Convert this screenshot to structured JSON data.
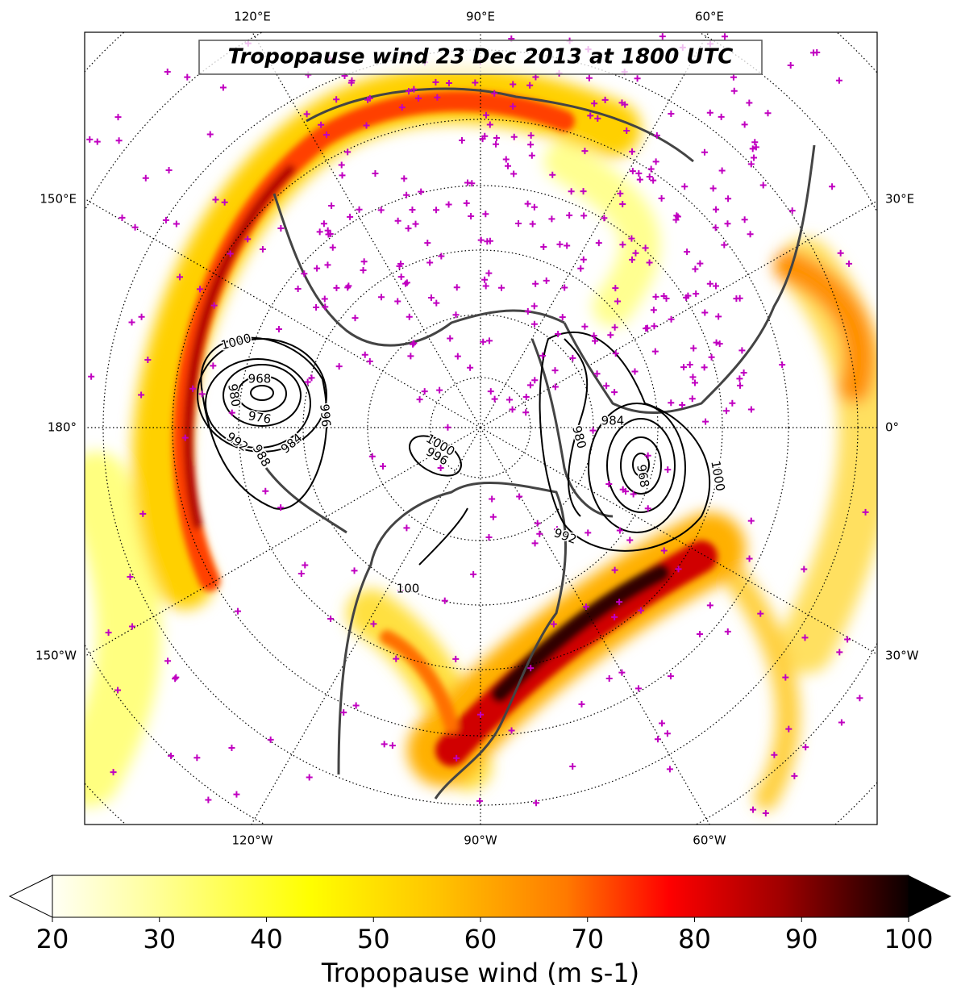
{
  "map": {
    "title": "Tropopause wind 23 Dec 2013 at 1800 UTC",
    "lon_labels": {
      "top": [
        "120°E",
        "90°E",
        "60°E"
      ],
      "bottom": [
        "120°W",
        "90°W",
        "60°W"
      ],
      "left": [
        "150°E",
        "180°",
        "150°W"
      ],
      "right": [
        "30°E",
        "0°",
        "30°W"
      ]
    },
    "contour_labels": [
      "1000",
      "968",
      "976",
      "980",
      "992",
      "988",
      "984",
      "996",
      "1000",
      "996",
      "984",
      "980",
      "968",
      "1000",
      "992",
      "100"
    ]
  },
  "colorbar": {
    "label": "Tropopause wind (m s-1)",
    "lim": [
      20,
      100
    ],
    "ticks": [
      20,
      30,
      40,
      50,
      60,
      70,
      80,
      90,
      100
    ]
  }
}
